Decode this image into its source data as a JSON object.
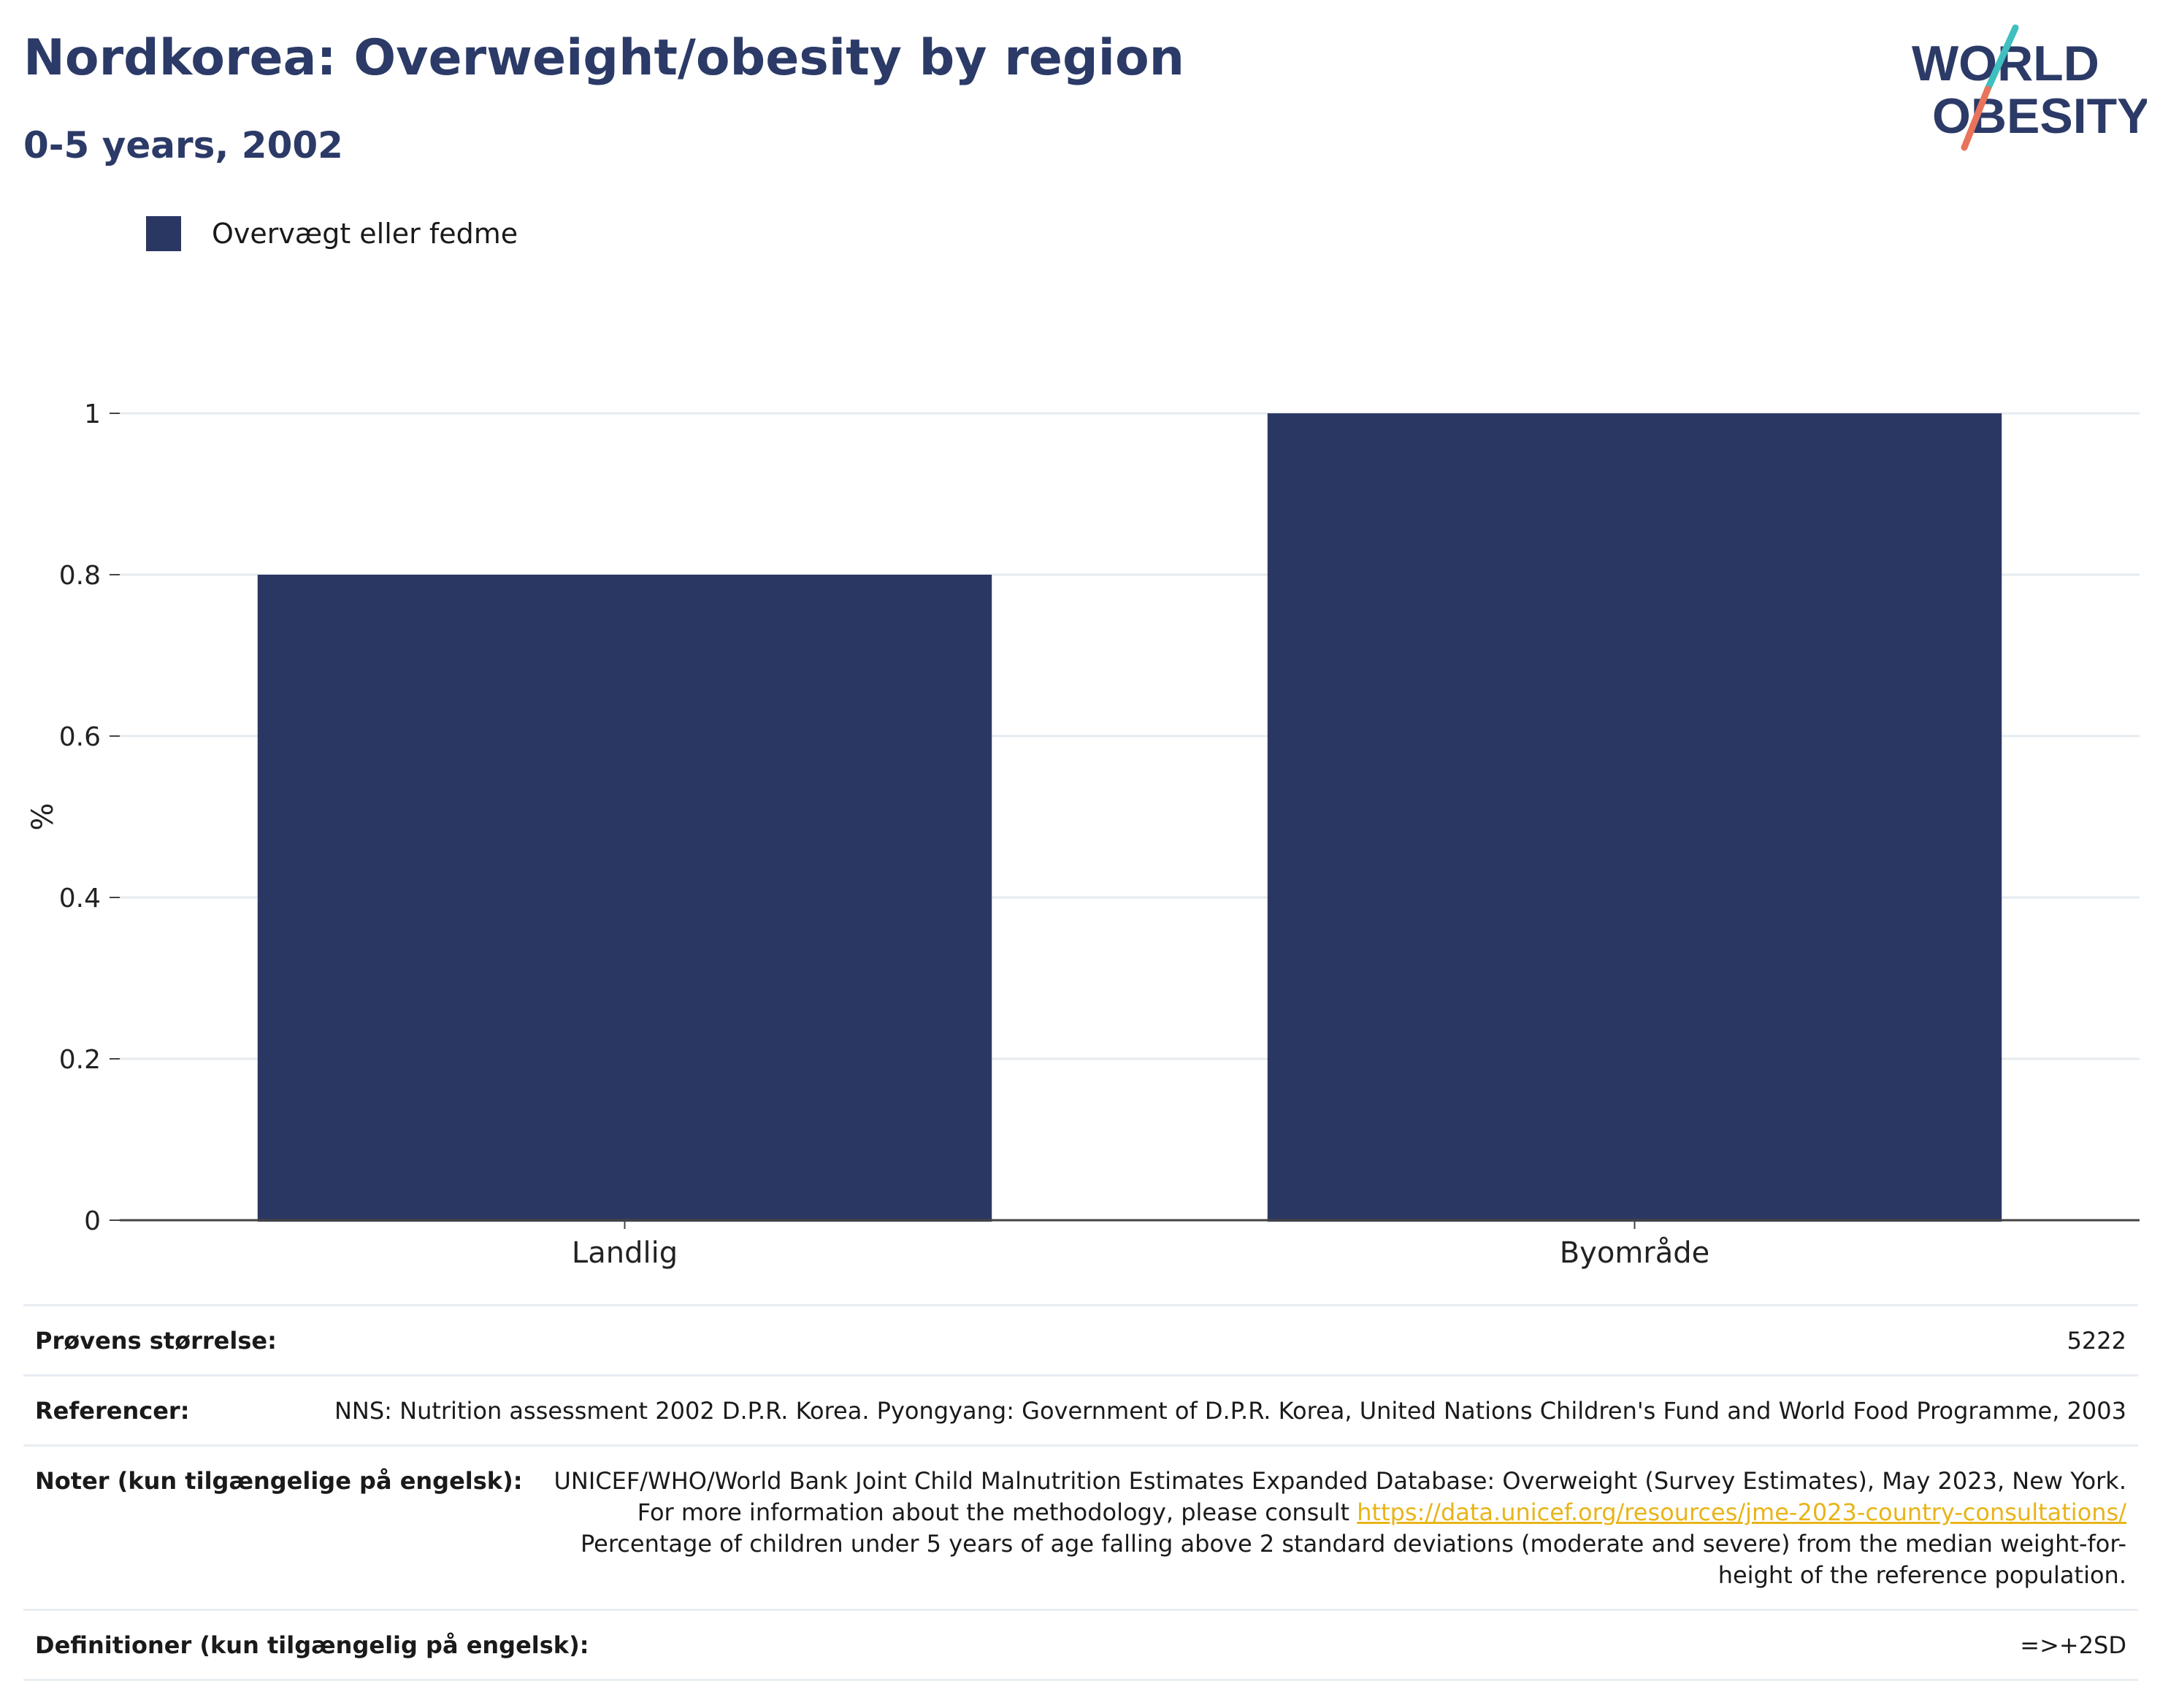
{
  "header": {
    "title": "Nordkorea: Overweight/obesity by region",
    "subtitle": "0-5 years, 2002"
  },
  "logo": {
    "line1": "WORLD",
    "line2": "OBESITY"
  },
  "colors": {
    "bar": "#2b3763",
    "title": "#2b3a67",
    "accent_teal": "#3fbfbf",
    "accent_coral": "#e8735a",
    "link": "#e8b419"
  },
  "chart_data": {
    "type": "bar",
    "categories": [
      "Landlig",
      "Byområde"
    ],
    "series": [
      {
        "name": "Overvægt eller fedme",
        "values": [
          0.8,
          1.0
        ]
      }
    ],
    "ylabel": "%",
    "ylim": [
      0,
      1
    ],
    "yticks": [
      "0",
      "0.2",
      "0.4",
      "0.6",
      "0.8",
      "1"
    ],
    "grid": true,
    "legend": "top-left"
  },
  "info": {
    "sample_label": "Prøvens størrelse:",
    "sample_value": "5222",
    "references_label": "Referencer:",
    "references_value": "NNS: Nutrition assessment 2002 D.P.R. Korea. Pyongyang: Government of D.P.R. Korea, United Nations Children's Fund and World Food Programme, 2003",
    "notes_label": "Noter (kun tilgængelige på engelsk):",
    "notes_before": "UNICEF/WHO/World Bank Joint Child Malnutrition Estimates Expanded Database: Overweight (Survey Estimates), May 2023, New York. For more information about the methodology, please consult ",
    "notes_link": "https://data.unicef.org/resources/jme-2023-country-consultations/",
    "notes_after": " Percentage of children under 5 years of age falling above 2 standard deviations (moderate and severe) from the median weight-for-height of the reference population.",
    "definitions_label": "Definitioner (kun tilgængelig på engelsk):",
    "definitions_value": "=>+2SD"
  }
}
